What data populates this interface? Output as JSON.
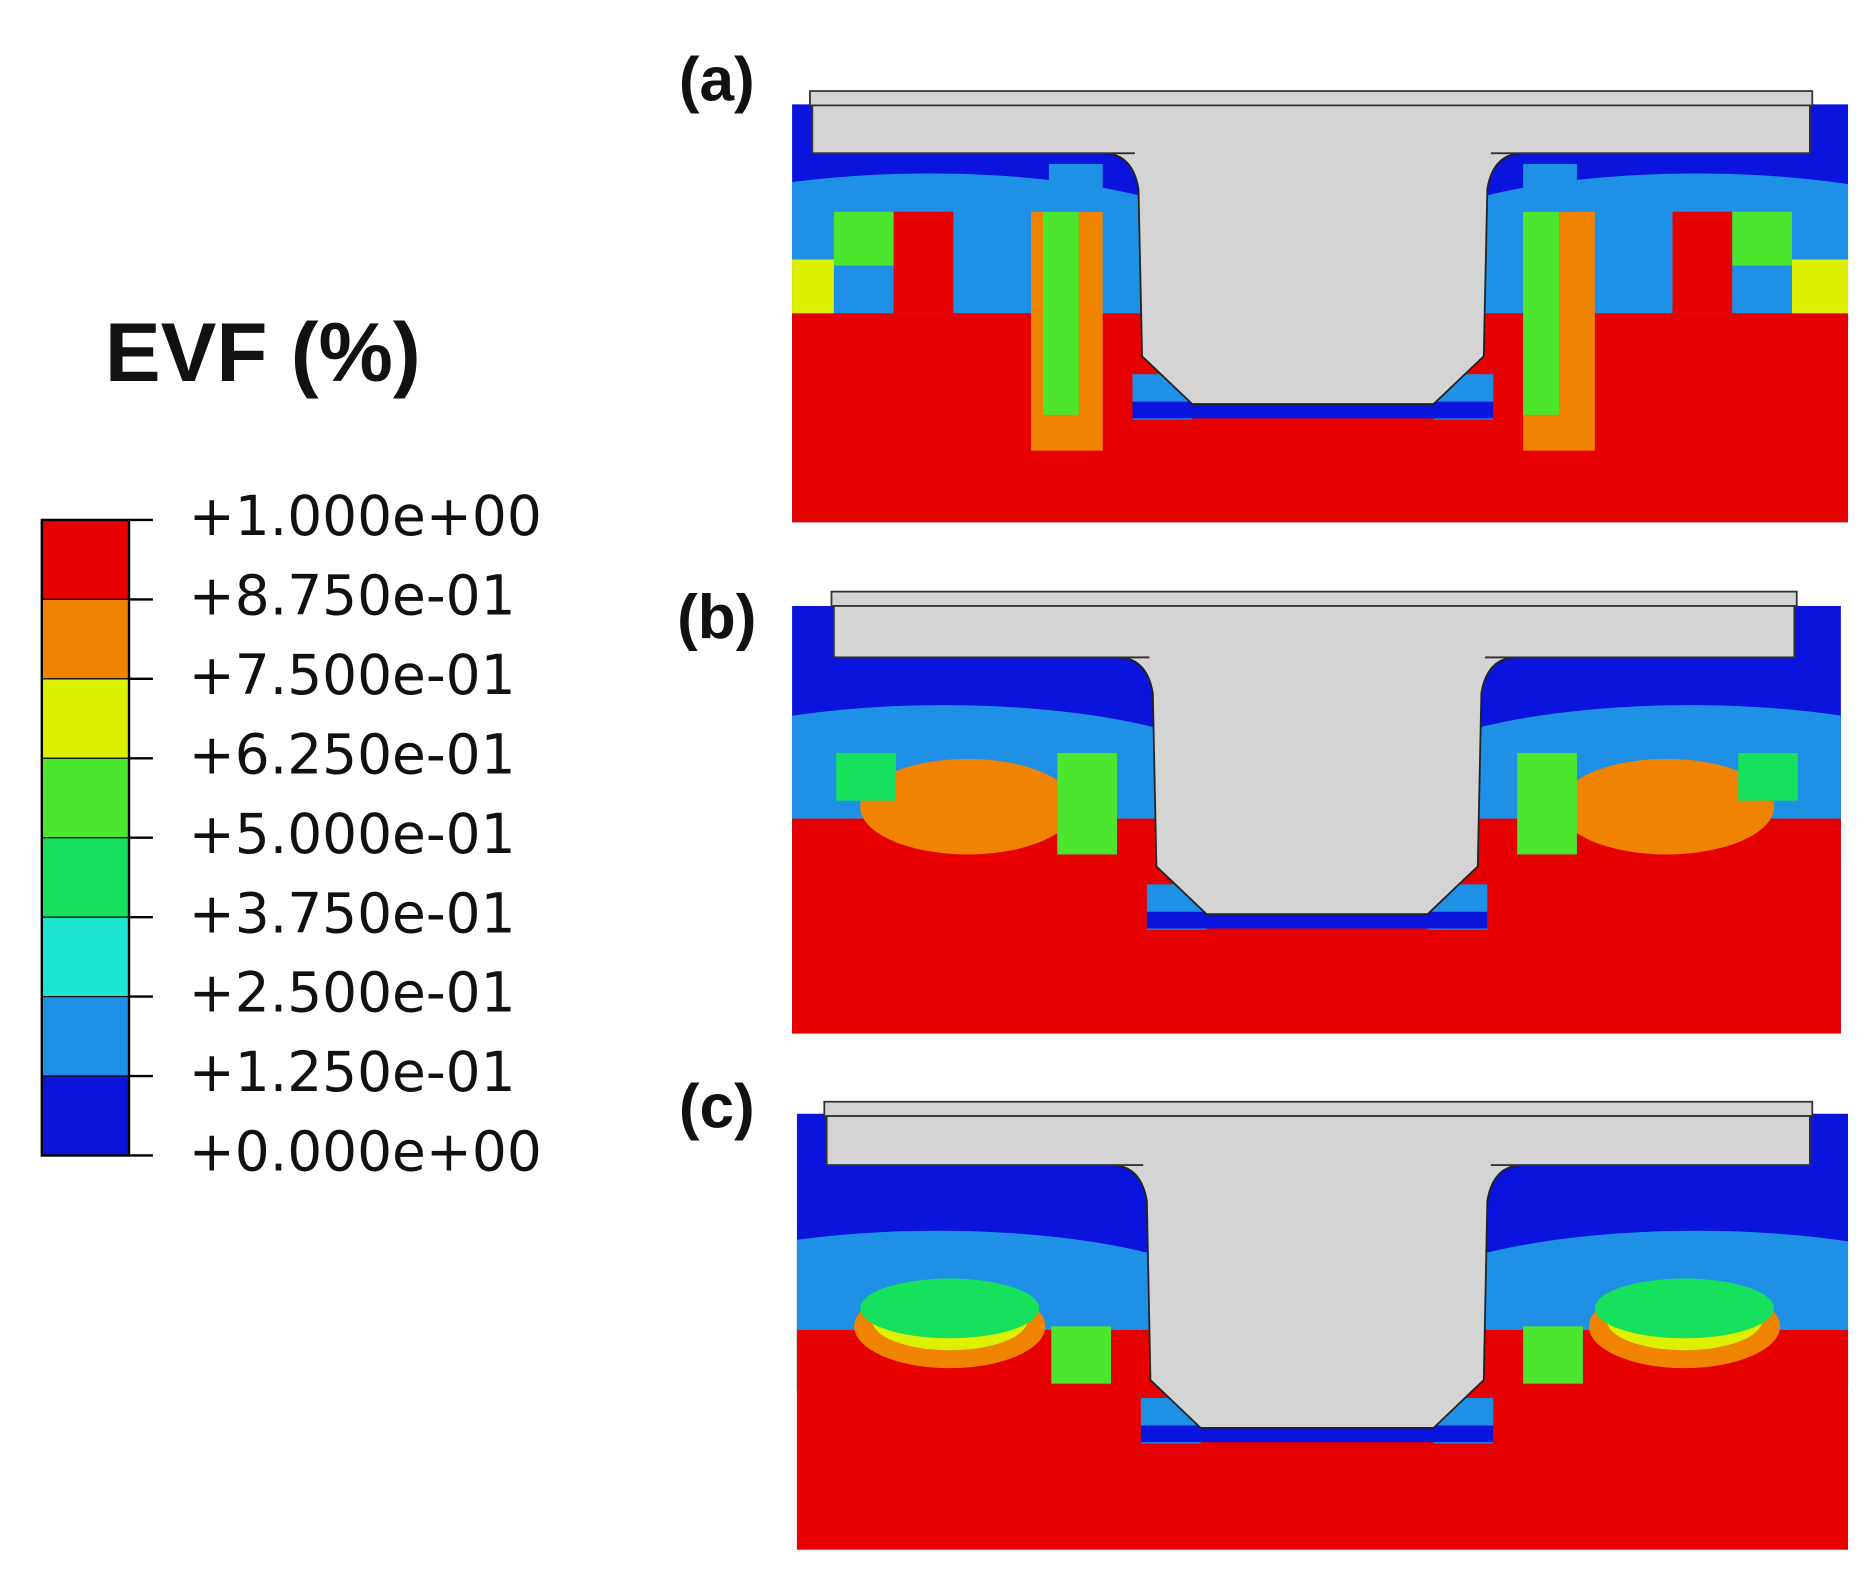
{
  "legend": {
    "title": "EVF (%)",
    "levels": [
      "+1.000e+00",
      "+8.750e-01",
      "+7.500e-01",
      "+6.250e-01",
      "+5.000e-01",
      "+3.750e-01",
      "+2.500e-01",
      "+1.250e-01",
      "+0.000e+00"
    ],
    "colors": [
      "#e60000",
      "#f08400",
      "#dcf000",
      "#4ce62e",
      "#16e05c",
      "#1ce6d2",
      "#1e90e6",
      "#0a14dc"
    ]
  },
  "panels": [
    {
      "label": "(a)"
    },
    {
      "label": "(b)"
    },
    {
      "label": "(c)"
    }
  ]
}
